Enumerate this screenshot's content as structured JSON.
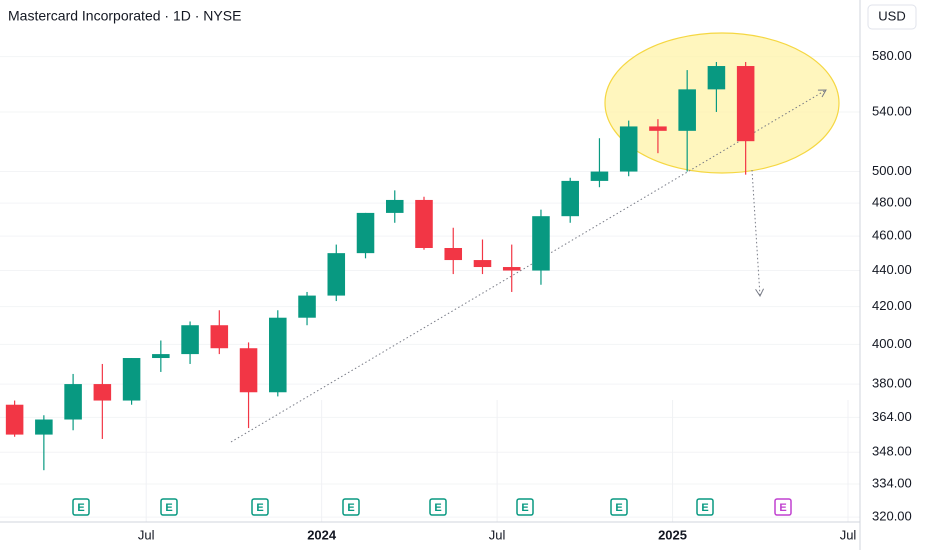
{
  "chart_data": {
    "type": "candlestick",
    "title": "Mastercard Incorporated · 1D · NYSE",
    "currency": "USD",
    "log_scale": true,
    "grid": true,
    "up_color": "#089981",
    "down_color": "#f23645",
    "ylim": [
      318,
      624
    ],
    "yticks": [
      {
        "value": 580,
        "label": "580.00"
      },
      {
        "value": 540,
        "label": "540.00"
      },
      {
        "value": 500,
        "label": "500.00"
      },
      {
        "value": 480,
        "label": "480.00"
      },
      {
        "value": 460,
        "label": "460.00"
      },
      {
        "value": 440,
        "label": "440.00"
      },
      {
        "value": 420,
        "label": "420.00"
      },
      {
        "value": 400,
        "label": "400.00"
      },
      {
        "value": 380,
        "label": "380.00"
      },
      {
        "value": 364,
        "label": "364.00"
      },
      {
        "value": 348,
        "label": "348.00"
      },
      {
        "value": 334,
        "label": "334.00"
      },
      {
        "value": 320,
        "label": "320.00"
      }
    ],
    "xlim": [
      "2023-02",
      "2025-07"
    ],
    "xticks": [
      {
        "value": "2023-07",
        "label": "Jul"
      },
      {
        "value": "2024-01",
        "label": "2024"
      },
      {
        "value": "2024-07",
        "label": "Jul"
      },
      {
        "value": "2025-01",
        "label": "2025"
      },
      {
        "value": "2025-07",
        "label": "Jul"
      }
    ],
    "x": [
      "2023-02",
      "2023-03",
      "2023-04",
      "2023-05",
      "2023-06",
      "2023-07",
      "2023-08",
      "2023-09",
      "2023-10",
      "2023-11",
      "2023-12",
      "2024-01",
      "2024-02",
      "2024-03",
      "2024-04",
      "2024-05",
      "2024-06",
      "2024-07",
      "2024-08",
      "2024-09",
      "2024-10",
      "2024-11",
      "2024-12",
      "2025-01",
      "2025-02",
      "2025-03"
    ],
    "open": [
      370,
      356,
      363,
      380,
      372,
      393,
      395,
      410,
      398,
      376,
      414,
      426,
      450,
      474,
      482,
      453,
      446,
      442,
      440,
      472,
      494,
      500,
      530,
      527,
      556,
      573
    ],
    "high": [
      372,
      365,
      385,
      390,
      393,
      402,
      412,
      418,
      401,
      418,
      428,
      455,
      474,
      488,
      484,
      465,
      458,
      455,
      476,
      496,
      522,
      534,
      535,
      570,
      576,
      576
    ],
    "low": [
      355,
      340,
      358,
      354,
      370,
      386,
      390,
      395,
      359,
      374,
      410,
      423,
      447,
      468,
      452,
      438,
      438,
      428,
      432,
      468,
      490,
      497,
      512,
      500,
      540,
      498
    ],
    "close": [
      356,
      363,
      380,
      372,
      393,
      395,
      410,
      398,
      376,
      414,
      426,
      450,
      474,
      482,
      453,
      446,
      442,
      440,
      472,
      494,
      500,
      530,
      527,
      556,
      573,
      520
    ],
    "events": [
      "E",
      "E",
      "E",
      "E",
      "E",
      "E",
      "E",
      "E",
      "E"
    ]
  }
}
